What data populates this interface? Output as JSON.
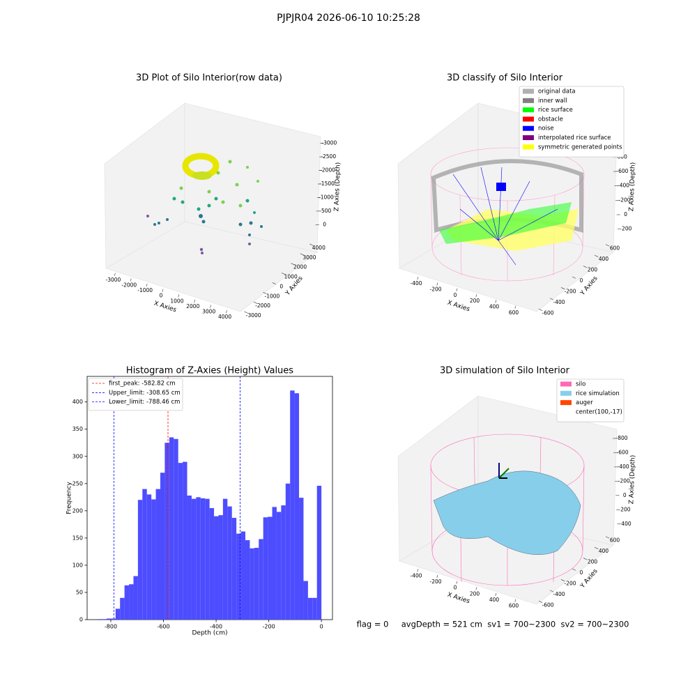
{
  "suptitle": "PJPJR04 2026-06-10 10:25:28",
  "footer": "flag = 0     avgDepth = 521 cm  sv1 = 700~2300  sv2 = 700~2300",
  "chart_data": [
    {
      "type": "scatter3d",
      "title": "3D Plot of Silo Interior(row data)",
      "xlabel": "X Axies",
      "ylabel": "Y Axies",
      "zlabel": "Z Axies (Depth)",
      "xlim": [
        -3500,
        4500
      ],
      "xticks": [
        -3000,
        -2000,
        -1000,
        0,
        1000,
        2000,
        3000,
        4000
      ],
      "ylim": [
        -3500,
        4500
      ],
      "yticks": [
        -3000,
        -2000,
        -1000,
        0,
        1000,
        2000,
        3000,
        4000
      ],
      "zlim": [
        -3300,
        300
      ],
      "zticks": [
        0,
        -500,
        -1000,
        -1500,
        -2000,
        -2500,
        -3000
      ]
    },
    {
      "type": "scatter3d",
      "title": "3D classify of Silo Interior",
      "xlabel": "X Axies",
      "ylabel": "Y Axies",
      "zlabel": "Z Axies (Depth)",
      "xlim": [
        -500,
        700
      ],
      "xticks": [
        -400,
        -200,
        0,
        200,
        400,
        600
      ],
      "ylim": [
        -700,
        700
      ],
      "yticks": [
        -600,
        -400,
        -200,
        0,
        200,
        400,
        600
      ],
      "zlim": [
        -900,
        300
      ],
      "zticks": [
        200,
        0,
        -200,
        -400,
        -600,
        -800
      ],
      "legend": [
        {
          "name": "original data",
          "color": "#b0b0b0"
        },
        {
          "name": "inner wall",
          "color": "#808080"
        },
        {
          "name": "rice surface",
          "color": "#00ff00"
        },
        {
          "name": "obstacle",
          "color": "#ff0000"
        },
        {
          "name": "noise",
          "color": "#0000ff"
        },
        {
          "name": "interpolated rice surface",
          "color": "#800080"
        },
        {
          "name": "symmetric generated points",
          "color": "#ffff00"
        }
      ]
    },
    {
      "type": "histogram",
      "title": "Histogram of Z-Axies (Height) Values",
      "xlabel": "Depth (cm)",
      "ylabel": "Frequency",
      "color": "#4d4dff",
      "bins": [
        -850,
        -833,
        -816,
        -799,
        -782,
        -765,
        -748,
        -731,
        -714,
        -697,
        -680,
        -663,
        -646,
        -629,
        -612,
        -595,
        -578,
        -561,
        -544,
        -527,
        -510,
        -493,
        -476,
        -459,
        -442,
        -425,
        -408,
        -391,
        -374,
        -357,
        -340,
        -323,
        -306,
        -289,
        -272,
        -255,
        -238,
        -221,
        -204,
        -187,
        -170,
        -153,
        -136,
        -119,
        -102,
        -85,
        -68,
        -51,
        -34,
        -17,
        0
      ],
      "counts": [
        1,
        1,
        2,
        2,
        20,
        40,
        63,
        65,
        80,
        220,
        240,
        230,
        221,
        240,
        270,
        325,
        335,
        332,
        288,
        290,
        228,
        222,
        225,
        223,
        222,
        205,
        190,
        192,
        222,
        208,
        187,
        158,
        162,
        146,
        131,
        132,
        148,
        188,
        189,
        207,
        198,
        210,
        250,
        421,
        416,
        224,
        71,
        40,
        40,
        246
      ],
      "xlim": [
        -890,
        42
      ],
      "xticks": [
        -800,
        -600,
        -400,
        -200,
        0
      ],
      "ylim": [
        0,
        447
      ],
      "yticks": [
        0,
        50,
        100,
        150,
        200,
        250,
        300,
        350,
        400
      ],
      "vlines": [
        {
          "name": "first_peak: -582.82 cm",
          "value": -582.82,
          "color": "#ff0000"
        },
        {
          "name": "Upper_limit: -308.65 cm",
          "value": -308.65,
          "color": "#0000ff"
        },
        {
          "name": "Lower_limit: -788.46 cm",
          "value": -788.46,
          "color": "#0000ff"
        }
      ]
    },
    {
      "type": "surface3d",
      "title": "3D simulation of Silo Interior",
      "xlabel": "X Axies",
      "ylabel": "Y Axies",
      "zlabel": "Z Axies (Depth)",
      "xlim": [
        -500,
        700
      ],
      "xticks": [
        -400,
        -200,
        0,
        200,
        400,
        600
      ],
      "ylim": [
        -700,
        700
      ],
      "yticks": [
        -600,
        -400,
        -200,
        0,
        200,
        400,
        600
      ],
      "zlim": [
        -900,
        500
      ],
      "zticks": [
        400,
        200,
        0,
        -200,
        -400,
        -600,
        -800
      ],
      "legend": [
        {
          "name": "silo",
          "color": "#ff69b4"
        },
        {
          "name": "rice simulation",
          "color": "#87ceeb"
        },
        {
          "name": "auger",
          "color": "#ff4500"
        },
        {
          "name": "center(100,-17)"
        }
      ]
    }
  ]
}
